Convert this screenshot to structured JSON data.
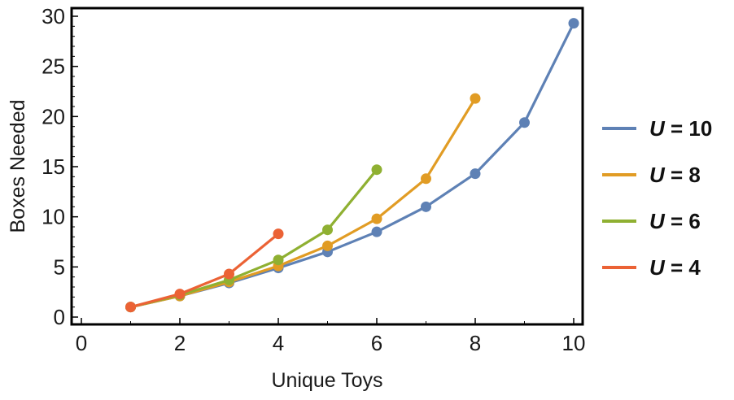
{
  "chart_data": {
    "type": "line",
    "xlabel": "Unique Toys",
    "ylabel": "Boxes Needed",
    "xlim": [
      0,
      10
    ],
    "ylim": [
      0,
      30
    ],
    "xticks": [
      "0",
      "2",
      "4",
      "6",
      "8",
      "10"
    ],
    "yticks": [
      "0",
      "5",
      "10",
      "15",
      "20",
      "25",
      "30"
    ],
    "grid": false,
    "legend_position": "right",
    "series": [
      {
        "name": "U = 10",
        "legend_var": "U",
        "legend_rest": " = 10",
        "color": "#5E81B5",
        "x": [
          1,
          2,
          3,
          4,
          5,
          6,
          7,
          8,
          9,
          10
        ],
        "y": [
          1.0,
          2.1,
          3.4,
          4.9,
          6.5,
          8.5,
          11.0,
          14.3,
          19.4,
          29.3
        ]
      },
      {
        "name": "U = 8",
        "legend_var": "U",
        "legend_rest": " = 8",
        "color": "#E19C24",
        "x": [
          1,
          2,
          3,
          4,
          5,
          6,
          7,
          8
        ],
        "y": [
          1.0,
          2.1,
          3.5,
          5.1,
          7.1,
          9.8,
          13.8,
          21.8
        ]
      },
      {
        "name": "U = 6",
        "legend_var": "U",
        "legend_rest": " = 6",
        "color": "#8FB032",
        "x": [
          1,
          2,
          3,
          4,
          5,
          6
        ],
        "y": [
          1.0,
          2.2,
          3.7,
          5.7,
          8.7,
          14.7
        ]
      },
      {
        "name": "U = 4",
        "legend_var": "U",
        "legend_rest": " = 4",
        "color": "#EB6235",
        "x": [
          1,
          2,
          3,
          4
        ],
        "y": [
          1.0,
          2.3,
          4.3,
          8.3
        ]
      }
    ]
  }
}
